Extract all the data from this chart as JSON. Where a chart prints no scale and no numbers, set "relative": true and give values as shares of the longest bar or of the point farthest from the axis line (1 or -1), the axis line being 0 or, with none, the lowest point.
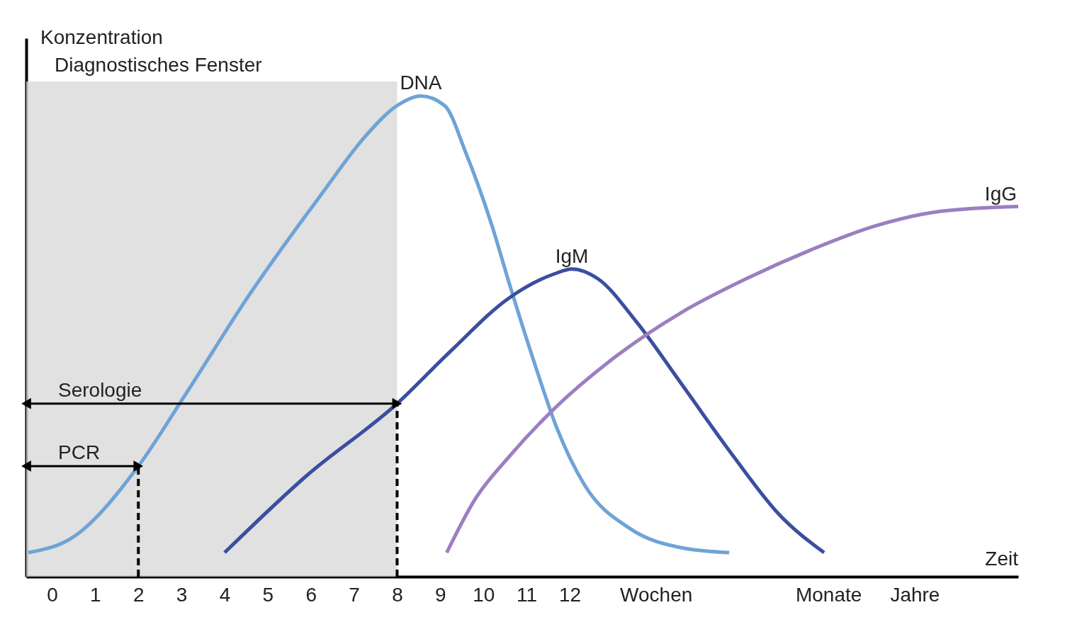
{
  "chart_data": {
    "type": "line",
    "relative": true,
    "ylabel": "Konzentration",
    "xlabel": "Zeit",
    "xlim": [
      -0.6,
      22.4
    ],
    "xticks": [
      0,
      1,
      2,
      3,
      4,
      5,
      6,
      7,
      8,
      9,
      10,
      11,
      12,
      {
        "value": 14,
        "label": "Wochen"
      },
      {
        "value": 18,
        "label": "Monate"
      },
      {
        "value": 20,
        "label": "Jahre"
      }
    ],
    "grid": false,
    "marker": "none",
    "line_style": "solid",
    "series": [
      {
        "name": "DNA",
        "color": "#6fa3d6",
        "x": [
          -0.55,
          0.45,
          2,
          3.1,
          4.6,
          6.2,
          7.3,
          8,
          8.55,
          9.1,
          9.6,
          10.2,
          10.6,
          11.2,
          11.7,
          12.35,
          13.4,
          14.6,
          15.7
        ],
        "values": [
          0.05,
          0.08,
          0.23,
          0.38,
          0.59,
          0.79,
          0.92,
          0.98,
          1.0,
          0.98,
          0.88,
          0.73,
          0.61,
          0.44,
          0.31,
          0.19,
          0.1,
          0.06,
          0.05
        ]
      },
      {
        "name": "IgM",
        "color": "#3a4fa0",
        "x": [
          4,
          5.9,
          8,
          9.25,
          10.6,
          11.65,
          12.05,
          12.65,
          13.55,
          14.6,
          15.8,
          16.85,
          17.9
        ],
        "values": [
          0.05,
          0.21,
          0.36,
          0.47,
          0.58,
          0.63,
          0.64,
          0.62,
          0.53,
          0.4,
          0.25,
          0.13,
          0.05
        ]
      },
      {
        "name": "IgG",
        "color": "#9b7fc0",
        "x": [
          9.15,
          9.8,
          10.6,
          11.65,
          13.1,
          14.6,
          16.1,
          17.6,
          19.1,
          20.6,
          22.4
        ],
        "values": [
          0.05,
          0.16,
          0.25,
          0.35,
          0.46,
          0.55,
          0.62,
          0.68,
          0.73,
          0.76,
          0.77
        ]
      }
    ],
    "bands": [
      {
        "axis": "x",
        "from": -0.6,
        "to": 8,
        "label": "Diagnostisches Fenster",
        "color": "#d9d9d9"
      }
    ],
    "ref_lines": [
      {
        "axis": "x",
        "value": 2,
        "line_style": "dashed",
        "color": "#000000"
      },
      {
        "axis": "x",
        "value": 8,
        "line_style": "dashed",
        "color": "#000000"
      }
    ],
    "annotations": [
      "PCR",
      "Serologie"
    ]
  }
}
